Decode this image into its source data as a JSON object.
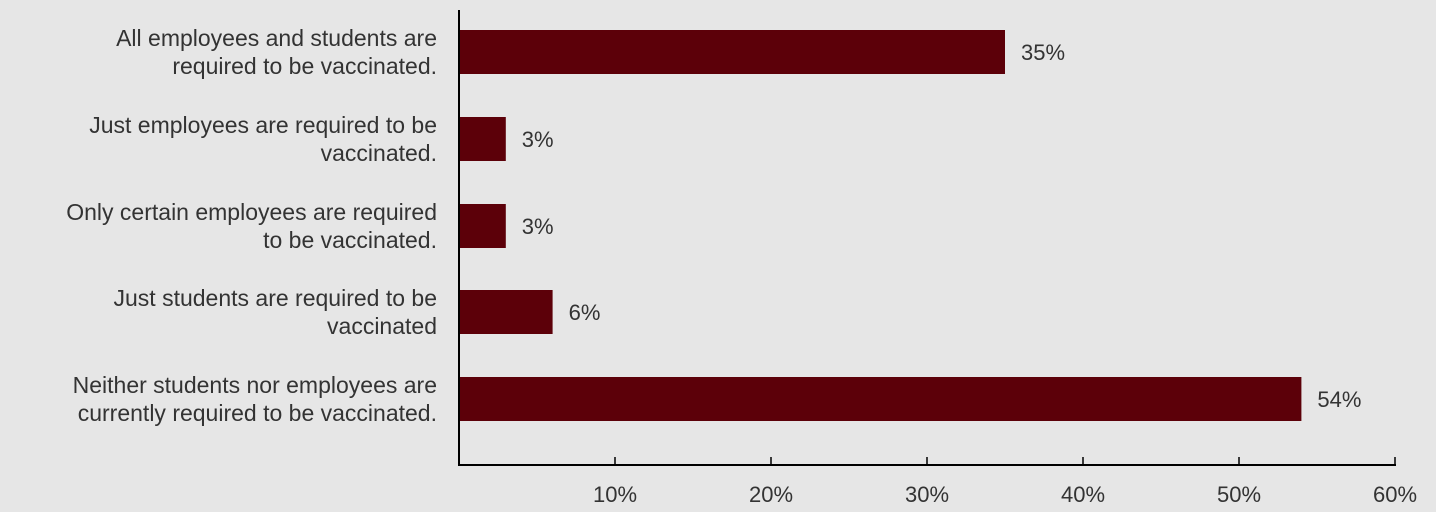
{
  "chart_data": {
    "type": "bar",
    "orientation": "horizontal",
    "categories": [
      [
        "All employees and students are",
        "required to be vaccinated."
      ],
      [
        "Just employees are required to be",
        "vaccinated."
      ],
      [
        "Only certain employees are required",
        "to be vaccinated."
      ],
      [
        "Just students are required to be",
        "vaccinated"
      ],
      [
        "Neither students nor employees are",
        "currently required to be vaccinated."
      ]
    ],
    "values": [
      35,
      3,
      3,
      6,
      54
    ],
    "value_labels": [
      "35%",
      "3%",
      "3%",
      "6%",
      "54%"
    ],
    "xlim": [
      0,
      60
    ],
    "x_ticks": [
      10,
      20,
      30,
      40,
      50,
      60
    ],
    "x_tick_labels": [
      "10%",
      "20%",
      "30%",
      "40%",
      "50%",
      "60%"
    ],
    "title": "",
    "xlabel": "",
    "ylabel": "",
    "grid": false,
    "legend": "none",
    "colors": {
      "bar": "#5c0009",
      "axis": "#000000",
      "text": "#333333",
      "background": "#e6e6e6"
    }
  }
}
